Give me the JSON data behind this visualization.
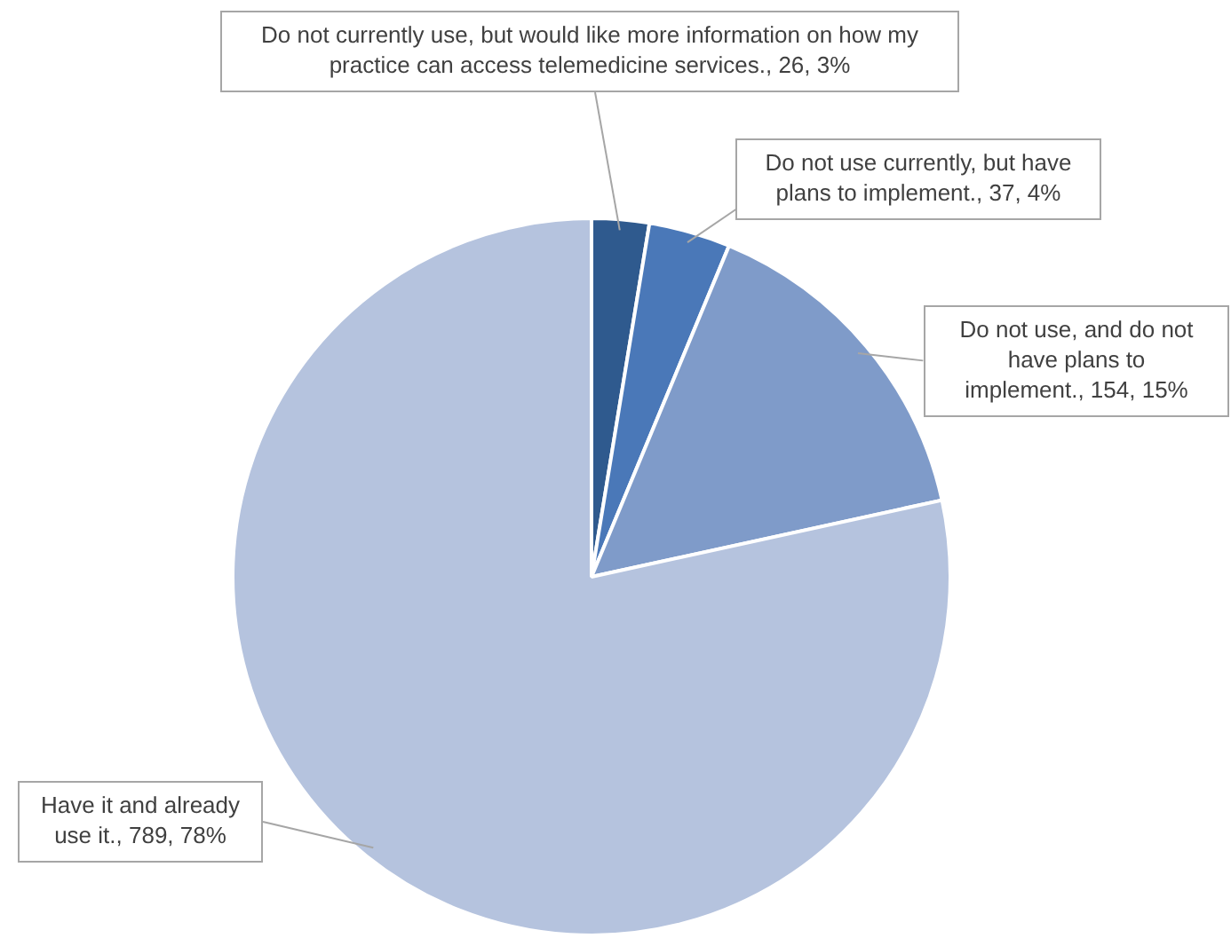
{
  "chart_data": {
    "type": "pie",
    "categories": [
      "Do not currently use, but would like more information on how my practice can access telemedicine services.",
      "Do not use currently, but have plans to implement.",
      "Do not use, and do not have plans to implement.",
      "Have it and already use it."
    ],
    "values": [
      26,
      37,
      154,
      789
    ],
    "value_labels": [
      "26, 3%",
      "37, 4%",
      "154, 15%",
      "789, 78%"
    ],
    "colors": [
      "#2f5a8e",
      "#4a78b8",
      "#7f9bc9",
      "#b5c3de"
    ],
    "legend": false
  }
}
